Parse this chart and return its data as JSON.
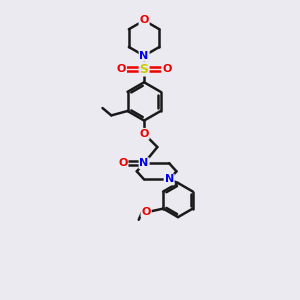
{
  "background_color": "#eaeaf0",
  "line_color": "#1a1a1a",
  "bond_width": 1.8,
  "atom_colors": {
    "N": "#0000ee",
    "O": "#ee0000",
    "S": "#cccc00",
    "C": "#1a1a1a"
  },
  "font_size": 8,
  "figsize": [
    3.0,
    3.0
  ],
  "dpi": 100
}
